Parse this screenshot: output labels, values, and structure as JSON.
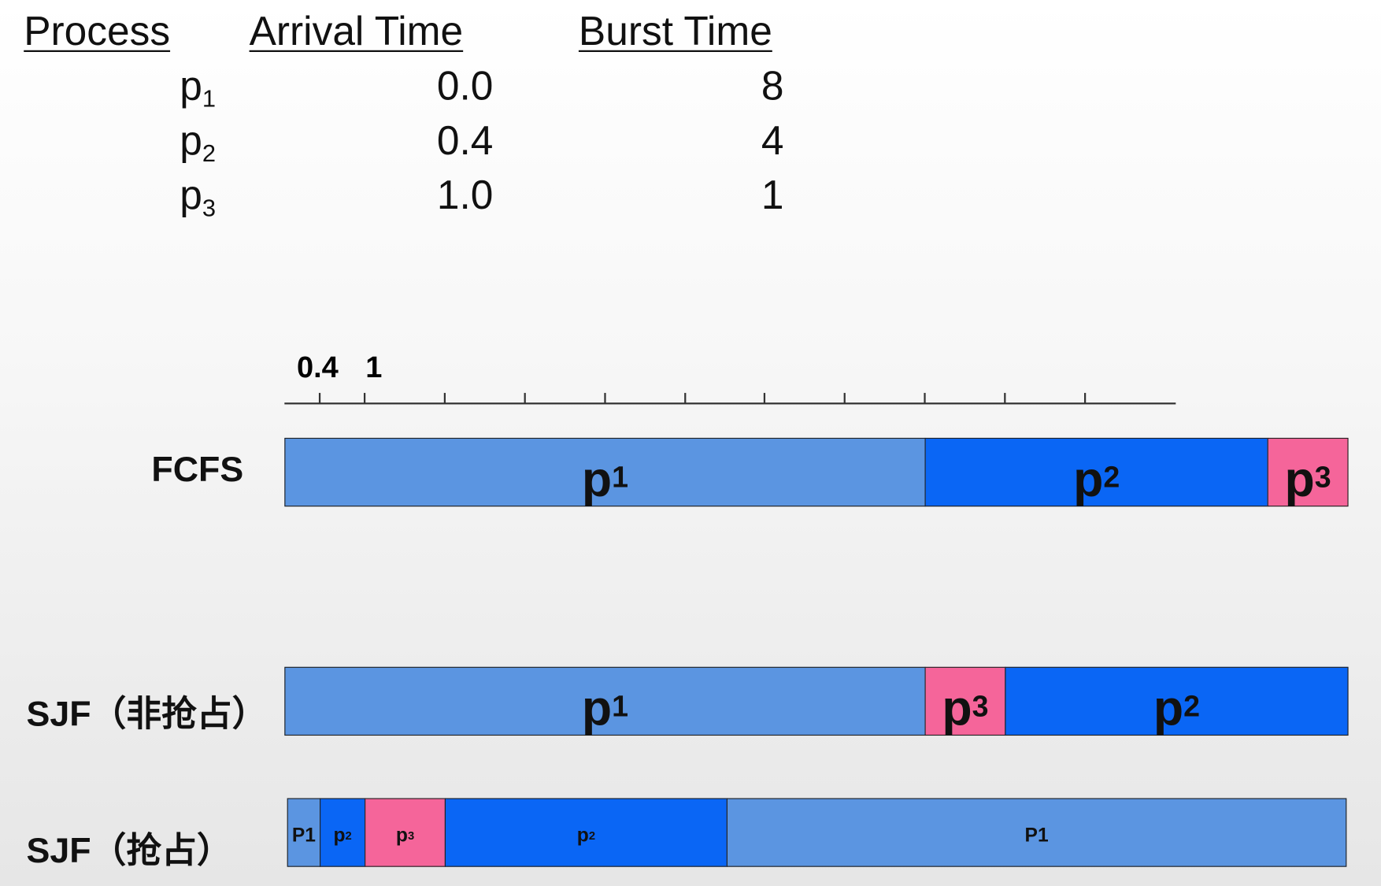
{
  "table": {
    "headers": [
      "Process",
      "Arrival Time",
      "Burst Time"
    ],
    "rows": [
      {
        "process": "p",
        "sub": "1",
        "arrival": "0.0",
        "burst": "8"
      },
      {
        "process": "p",
        "sub": "2",
        "arrival": "0.4",
        "burst": "4"
      },
      {
        "process": "p",
        "sub": "3",
        "arrival": "1.0",
        "burst": "1"
      }
    ]
  },
  "timeline": {
    "tick_labels": [
      "0.4",
      "1"
    ]
  },
  "gantt": [
    {
      "label": "FCFS",
      "segments": [
        {
          "text": "p",
          "sub": "1"
        },
        {
          "text": "p",
          "sub": "2"
        },
        {
          "text": "p",
          "sub": "3"
        }
      ]
    },
    {
      "label": "SJF（非抢占）",
      "segments": [
        {
          "text": "p",
          "sub": "1"
        },
        {
          "text": "p",
          "sub": "3"
        },
        {
          "text": "p",
          "sub": "2"
        }
      ]
    },
    {
      "label": "SJF（抢占）",
      "segments": [
        {
          "text": "P1"
        },
        {
          "text": "p",
          "sub": "2"
        },
        {
          "text": "p",
          "sub": "3"
        },
        {
          "text": "p",
          "sub": "2"
        },
        {
          "text": "P1"
        }
      ]
    }
  ]
}
